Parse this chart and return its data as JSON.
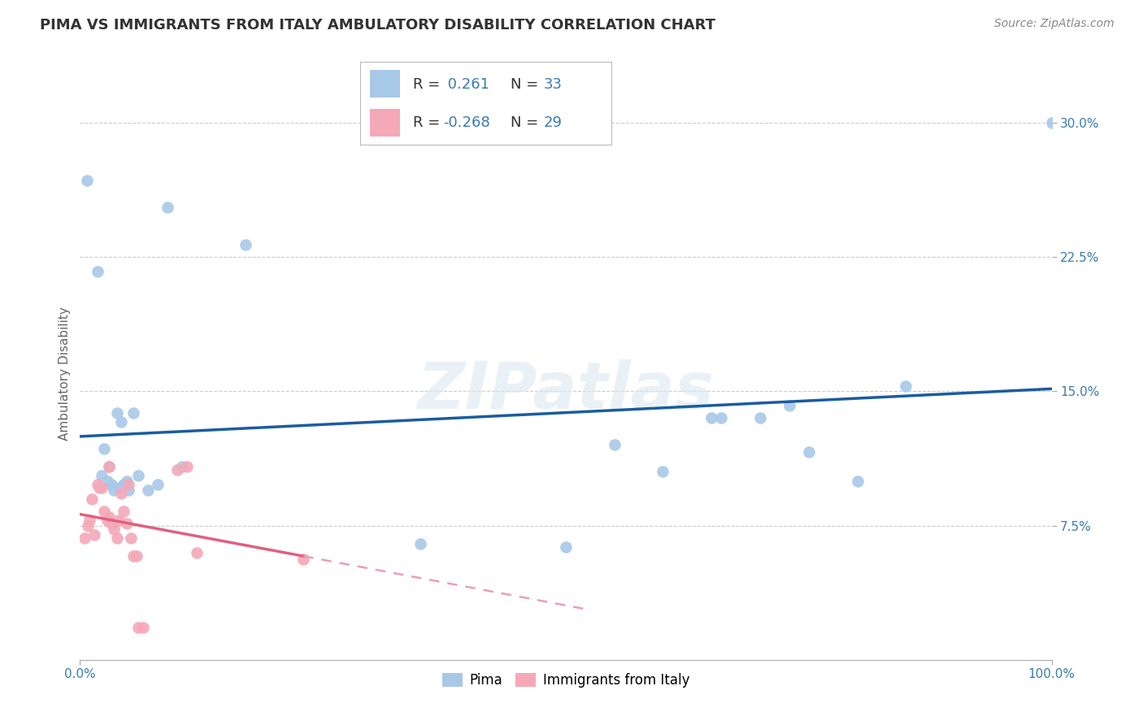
{
  "title": "PIMA VS IMMIGRANTS FROM ITALY AMBULATORY DISABILITY CORRELATION CHART",
  "source_text": "Source: ZipAtlas.com",
  "ylabel": "Ambulatory Disability",
  "background_color": "#ffffff",
  "grid_color": "#cccccc",
  "watermark": "ZIPatlas",
  "pima_color": "#a8c8e8",
  "italy_color": "#f4a8b8",
  "pima_R": 0.261,
  "pima_N": 33,
  "italy_R": -0.268,
  "italy_N": 29,
  "pima_scatter": [
    [
      0.007,
      0.268
    ],
    [
      0.018,
      0.217
    ],
    [
      0.022,
      0.103
    ],
    [
      0.025,
      0.118
    ],
    [
      0.028,
      0.1
    ],
    [
      0.03,
      0.108
    ],
    [
      0.032,
      0.098
    ],
    [
      0.035,
      0.095
    ],
    [
      0.038,
      0.138
    ],
    [
      0.04,
      0.096
    ],
    [
      0.042,
      0.133
    ],
    [
      0.045,
      0.098
    ],
    [
      0.048,
      0.1
    ],
    [
      0.05,
      0.095
    ],
    [
      0.055,
      0.138
    ],
    [
      0.06,
      0.103
    ],
    [
      0.07,
      0.095
    ],
    [
      0.08,
      0.098
    ],
    [
      0.09,
      0.253
    ],
    [
      0.105,
      0.108
    ],
    [
      0.17,
      0.232
    ],
    [
      0.35,
      0.065
    ],
    [
      0.5,
      0.063
    ],
    [
      0.55,
      0.12
    ],
    [
      0.6,
      0.105
    ],
    [
      0.65,
      0.135
    ],
    [
      0.66,
      0.135
    ],
    [
      0.7,
      0.135
    ],
    [
      0.73,
      0.142
    ],
    [
      0.75,
      0.116
    ],
    [
      0.8,
      0.1
    ],
    [
      0.85,
      0.153
    ],
    [
      1.0,
      0.3
    ]
  ],
  "italy_scatter": [
    [
      0.005,
      0.068
    ],
    [
      0.008,
      0.075
    ],
    [
      0.01,
      0.078
    ],
    [
      0.012,
      0.09
    ],
    [
      0.015,
      0.07
    ],
    [
      0.018,
      0.098
    ],
    [
      0.02,
      0.096
    ],
    [
      0.022,
      0.096
    ],
    [
      0.025,
      0.083
    ],
    [
      0.028,
      0.078
    ],
    [
      0.03,
      0.08
    ],
    [
      0.03,
      0.108
    ],
    [
      0.032,
      0.076
    ],
    [
      0.035,
      0.073
    ],
    [
      0.038,
      0.068
    ],
    [
      0.04,
      0.078
    ],
    [
      0.042,
      0.093
    ],
    [
      0.045,
      0.083
    ],
    [
      0.048,
      0.076
    ],
    [
      0.05,
      0.098
    ],
    [
      0.052,
      0.068
    ],
    [
      0.055,
      0.058
    ],
    [
      0.058,
      0.058
    ],
    [
      0.06,
      0.018
    ],
    [
      0.065,
      0.018
    ],
    [
      0.1,
      0.106
    ],
    [
      0.11,
      0.108
    ],
    [
      0.12,
      0.06
    ],
    [
      0.23,
      0.056
    ]
  ],
  "xlim": [
    0.0,
    1.0
  ],
  "ylim": [
    0.0,
    0.32
  ],
  "xticks": [
    0.0,
    1.0
  ],
  "xticklabels": [
    "0.0%",
    "100.0%"
  ],
  "yticks": [
    0.075,
    0.15,
    0.225,
    0.3
  ],
  "yticklabels": [
    "7.5%",
    "15.0%",
    "22.5%",
    "30.0%"
  ],
  "blue_line_color": "#1a5ca0",
  "pink_line_color": "#e06080",
  "pink_dashed_color": "#e8a0b0",
  "title_fontsize": 13,
  "axis_label_fontsize": 11,
  "tick_fontsize": 11,
  "legend_fontsize": 13,
  "source_fontsize": 10,
  "legend_text_color": "#3a7ab5",
  "tick_color": "#3a7ab5"
}
